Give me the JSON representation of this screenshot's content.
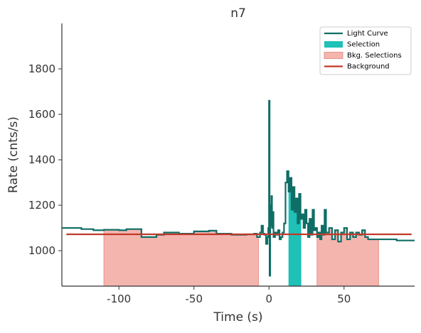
{
  "chart_data": {
    "type": "step",
    "title": "n7",
    "xlabel": "Time (s)",
    "ylabel": "Rate (cnts/s)",
    "xlim": [
      -138,
      97
    ],
    "ylim": [
      844,
      2000
    ],
    "xticks": [
      -100,
      -50,
      0,
      50
    ],
    "yticks": [
      1000,
      1200,
      1400,
      1600,
      1800
    ],
    "legend_position": "upper right",
    "series": [
      {
        "name": "Light Curve",
        "color": "#0f6e66",
        "x": [
          -138,
          -125,
          -117,
          -110,
          -100,
          -95,
          -85,
          -75,
          -70,
          -60,
          -50,
          -40,
          -35,
          -25,
          -15,
          -10,
          -8,
          -6,
          -5,
          -4,
          -3,
          -2,
          -1,
          -0.5,
          0,
          0.4,
          0.8,
          1.2,
          1.6,
          2,
          2.5,
          3,
          4,
          5,
          6,
          7,
          8,
          9,
          10,
          11,
          12,
          13,
          14,
          15,
          16,
          17,
          18,
          19,
          20,
          21,
          22,
          23,
          24,
          25,
          26,
          27,
          28,
          29,
          30,
          31,
          32,
          33,
          34,
          35,
          36,
          37,
          38,
          40,
          42,
          44,
          46,
          48,
          50,
          52,
          54,
          56,
          58,
          60,
          62,
          64,
          66,
          85
        ],
        "values": [
          1100,
          1095,
          1090,
          1092,
          1090,
          1095,
          1060,
          1070,
          1080,
          1075,
          1085,
          1088,
          1075,
          1070,
          1072,
          1075,
          1060,
          1080,
          1110,
          1075,
          1070,
          1030,
          1060,
          1100,
          1660,
          890,
          1200,
          1110,
          1240,
          1100,
          1170,
          1060,
          1080,
          1070,
          1090,
          1050,
          1060,
          1080,
          1120,
          1300,
          1350,
          1260,
          1320,
          1180,
          1280,
          1170,
          1230,
          1120,
          1250,
          1140,
          1160,
          1100,
          1180,
          1120,
          1060,
          1140,
          1070,
          1180,
          1090,
          1100,
          1060,
          1080,
          1050,
          1110,
          1070,
          1180,
          1080,
          1100,
          1050,
          1090,
          1040,
          1080,
          1100,
          1050,
          1080,
          1060,
          1080,
          1070,
          1090,
          1060,
          1050,
          1045
        ]
      }
    ],
    "selection": {
      "name": "Selection",
      "color": "#1fc0b6",
      "ranges": [
        [
          13,
          21.5
        ]
      ]
    },
    "bkg_selections": {
      "name": "Bkg. Selections",
      "color": "#f4b5ae",
      "edge_color": "#e8938a",
      "ranges": [
        [
          -110,
          -7
        ],
        [
          32,
          73
        ]
      ]
    },
    "background": {
      "name": "Background",
      "color": "#c0392b",
      "x": [
        -135,
        95
      ],
      "values": [
        1072,
        1072
      ]
    }
  }
}
